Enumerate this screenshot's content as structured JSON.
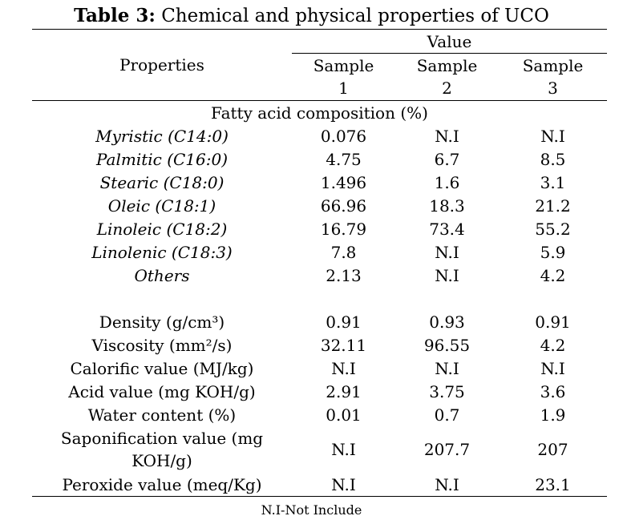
{
  "title": {
    "label": "Table 3:",
    "text": " Chemical and physical properties of UCO"
  },
  "header": {
    "properties": "Properties",
    "value": "Value",
    "samples": [
      "Sample 1",
      "Sample 2",
      "Sample 3"
    ]
  },
  "group_fatty_acid": "Fatty acid composition (%)",
  "fatty_acids": [
    {
      "name": "Myristic (C14:0)",
      "values": [
        "0.076",
        "N.I",
        "N.I"
      ]
    },
    {
      "name": "Palmitic (C16:0)",
      "values": [
        "4.75",
        "6.7",
        "8.5"
      ]
    },
    {
      "name": "Stearic (C18:0)",
      "values": [
        "1.496",
        "1.6",
        "3.1"
      ]
    },
    {
      "name": "Oleic (C18:1)",
      "values": [
        "66.96",
        "18.3",
        "21.2"
      ]
    },
    {
      "name": "Linoleic (C18:2)",
      "values": [
        "16.79",
        "73.4",
        "55.2"
      ]
    },
    {
      "name": "Linolenic (C18:3)",
      "values": [
        "7.8",
        "N.I",
        "5.9"
      ]
    },
    {
      "name": "Others",
      "values": [
        "2.13",
        "N.I",
        "4.2"
      ]
    }
  ],
  "physical": [
    {
      "name": "Density (g/cm³)",
      "values": [
        "0.91",
        "0.93",
        "0.91"
      ]
    },
    {
      "name": "Viscosity (mm²/s)",
      "values": [
        "32.11",
        "96.55",
        "4.2"
      ]
    },
    {
      "name": "Calorific value (MJ/kg)",
      "values": [
        "N.I",
        "N.I",
        "N.I"
      ]
    },
    {
      "name": "Acid value (mg KOH/g)",
      "values": [
        "2.91",
        "3.75",
        "3.6"
      ]
    },
    {
      "name": "Water content (%)",
      "values": [
        "0.01",
        "0.7",
        "1.9"
      ]
    },
    {
      "name": "Saponification value (mg KOH/g)",
      "values": [
        "N.I",
        "207.7",
        "207"
      ]
    },
    {
      "name": "Peroxide value (meq/Kg)",
      "values": [
        "N.I",
        "N.I",
        "23.1"
      ]
    }
  ],
  "footnote": "N.I-Not Include"
}
